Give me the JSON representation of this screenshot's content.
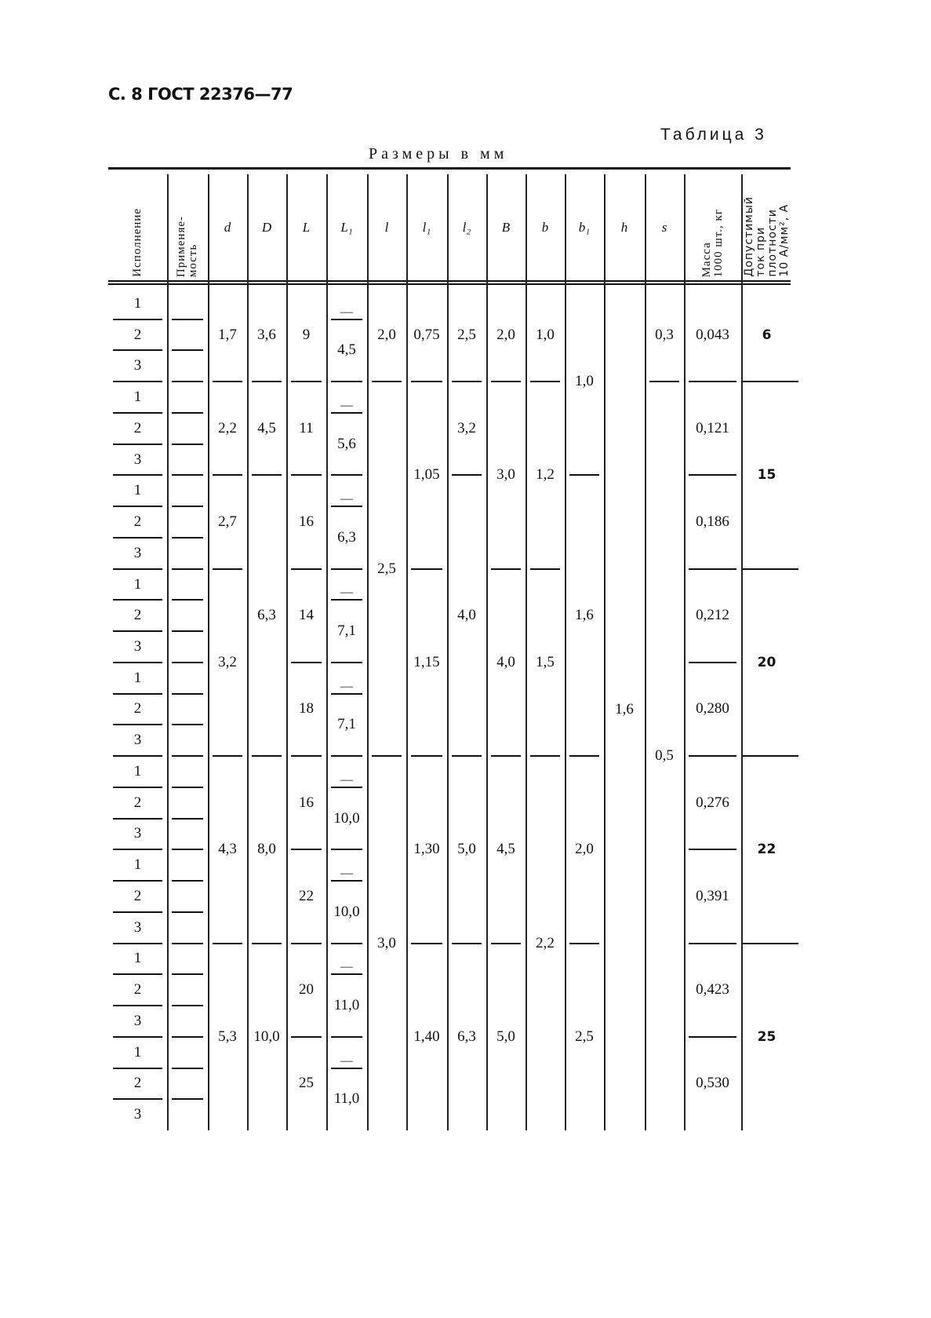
{
  "document": {
    "header": "С. 8 ГОСТ 22376—77",
    "table_number": "Таблица 3",
    "units": "Размеры в мм"
  },
  "columns": [
    {
      "label": "Исполнение",
      "vertical": true
    },
    {
      "label": "Применяе-\nмость",
      "vertical": true
    },
    {
      "label": "d"
    },
    {
      "label": "D"
    },
    {
      "label": "L"
    },
    {
      "label": "L₁"
    },
    {
      "label": "l"
    },
    {
      "label": "l₁"
    },
    {
      "label": "l₂"
    },
    {
      "label": "B"
    },
    {
      "label": "b"
    },
    {
      "label": "b₁"
    },
    {
      "label": "h"
    },
    {
      "label": "s"
    },
    {
      "label": "Масса\n1000 шт., кг",
      "vertical": true
    },
    {
      "label": "Допустимый\nток при\nплотности\n10 А/мм², А",
      "vertical": true,
      "bold": true
    }
  ],
  "ispolnenie": [
    "1",
    "2",
    "3",
    "1",
    "2",
    "3",
    "1",
    "2",
    "3",
    "1",
    "2",
    "3",
    "1",
    "2",
    "3",
    "1",
    "2",
    "3",
    "1",
    "2",
    "3",
    "1",
    "2",
    "3",
    "1",
    "2",
    "3"
  ],
  "column_cells": {
    "d": [
      [
        "1,7",
        3
      ],
      [
        "2,2",
        3
      ],
      [
        "2,7",
        3
      ],
      [
        "3,2",
        6
      ],
      [
        "4,3",
        6
      ],
      [
        "5,3",
        6
      ]
    ],
    "D": [
      [
        "3,6",
        3
      ],
      [
        "4,5",
        3
      ],
      [
        "6,3",
        9
      ],
      [
        "8,0",
        6
      ],
      [
        "10,0",
        6
      ]
    ],
    "L": [
      [
        "9",
        3
      ],
      [
        "11",
        3
      ],
      [
        "16",
        3
      ],
      [
        "14",
        3
      ],
      [
        "18",
        3
      ],
      [
        "16",
        3
      ],
      [
        "22",
        3
      ],
      [
        "20",
        3
      ],
      [
        "25",
        3
      ]
    ],
    "L1": [
      [
        "—",
        1
      ],
      [
        "4,5",
        2
      ],
      [
        "—",
        1
      ],
      [
        "5,6",
        2
      ],
      [
        "—",
        1
      ],
      [
        "6,3",
        2
      ],
      [
        "—",
        1
      ],
      [
        "7,1",
        2
      ],
      [
        "—",
        1
      ],
      [
        "7,1",
        2
      ],
      [
        "—",
        1
      ],
      [
        "10,0",
        2
      ],
      [
        "—",
        1
      ],
      [
        "10,0",
        2
      ],
      [
        "—",
        1
      ],
      [
        "11,0",
        2
      ],
      [
        "—",
        1
      ],
      [
        "11,0",
        2
      ]
    ],
    "l": [
      [
        "2,0",
        3
      ],
      [
        "2,5",
        12
      ],
      [
        "3,0",
        12
      ]
    ],
    "l1": [
      [
        "0,75",
        3
      ],
      [
        "1,05",
        6
      ],
      [
        "1,15",
        6
      ],
      [
        "1,30",
        6
      ],
      [
        "1,40",
        6
      ]
    ],
    "l2": [
      [
        "2,5",
        3
      ],
      [
        "3,2",
        3
      ],
      [
        "4,0",
        9
      ],
      [
        "5,0",
        6
      ],
      [
        "6,3",
        6
      ]
    ],
    "B": [
      [
        "2,0",
        3
      ],
      [
        "3,0",
        6
      ],
      [
        "4,0",
        6
      ],
      [
        "4,5",
        6
      ],
      [
        "5,0",
        6
      ]
    ],
    "b": [
      [
        "1,0",
        3
      ],
      [
        "1,2",
        6
      ],
      [
        "1,5",
        6
      ],
      [
        "2,2",
        12
      ]
    ],
    "b1": [
      [
        "1,0",
        6
      ],
      [
        "1,6",
        9
      ],
      [
        "2,0",
        6
      ],
      [
        "2,5",
        6
      ]
    ],
    "h": [
      [
        "1,6",
        27
      ]
    ],
    "s": [
      [
        "0,3",
        3
      ],
      [
        "0,5",
        24
      ]
    ],
    "mass": [
      [
        "0,043",
        3
      ],
      [
        "0,121",
        3
      ],
      [
        "0,186",
        3
      ],
      [
        "0,212",
        3
      ],
      [
        "0,280",
        3
      ],
      [
        "0,276",
        3
      ],
      [
        "0,391",
        3
      ],
      [
        "0,423",
        3
      ],
      [
        "0,530",
        3
      ]
    ],
    "current": [
      [
        "6",
        3
      ],
      [
        "15",
        6
      ],
      [
        "20",
        6
      ],
      [
        "22",
        6
      ],
      [
        "25",
        6
      ]
    ]
  }
}
